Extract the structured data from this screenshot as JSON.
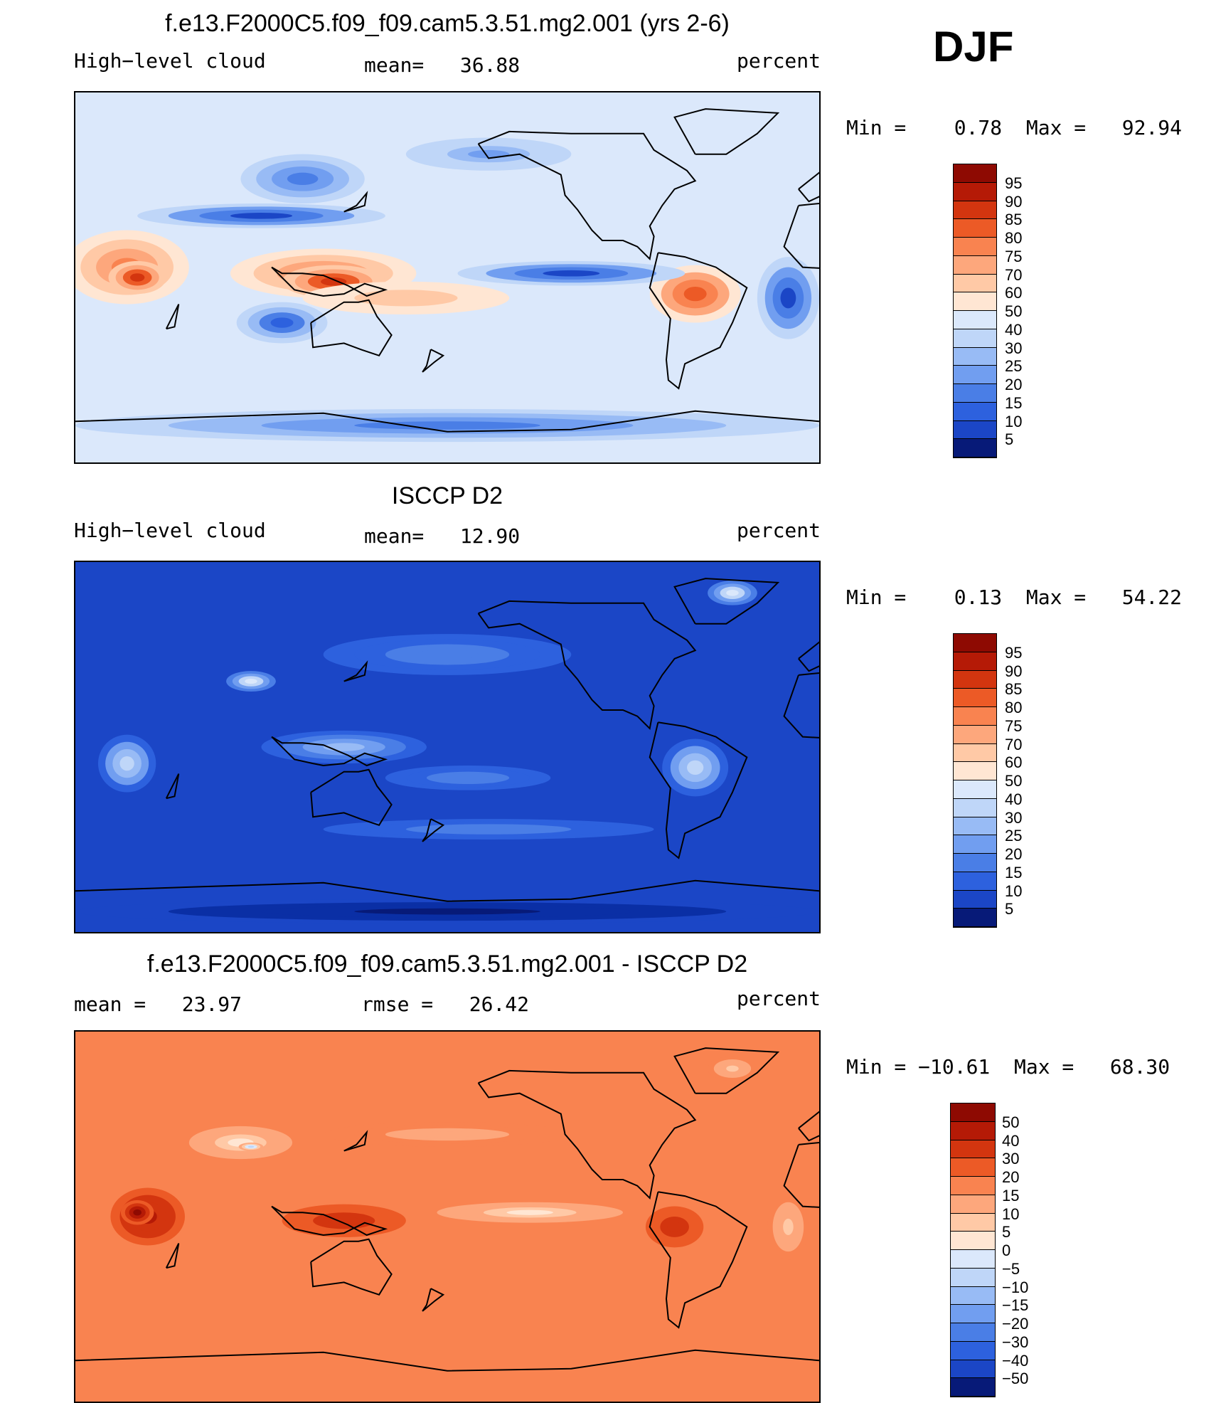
{
  "season": "DJF",
  "colors": {
    "ramp": [
      "#071a78",
      "#0a2fa5",
      "#1b46c6",
      "#2d61de",
      "#4a7ee6",
      "#719ef0",
      "#98bbf5",
      "#bfd6f8",
      "#dbe8fb",
      "#ffe6d3",
      "#ffc9a6",
      "#fda77c",
      "#f98350",
      "#ec5a26",
      "#d3350f",
      "#b51a06",
      "#8e0a02"
    ],
    "coastline": "#000000"
  },
  "panels": [
    {
      "title": "f.e13.F2000C5.f09_f09.cam5.3.51.mg2.001 (yrs 2-6)",
      "left_label": "High−level cloud",
      "center_label": "mean=   36.88",
      "right_label": "percent",
      "minmax": "Min =    0.78  Max =   92.94",
      "colorbar_labels": [
        "95",
        "90",
        "85",
        "80",
        "75",
        "70",
        "60",
        "50",
        "40",
        "30",
        "25",
        "20",
        "15",
        "10",
        "5"
      ],
      "field": {
        "type": "contour",
        "background_level": 8,
        "blobs": [
          {
            "lon": 25,
            "lat": 5,
            "rx": 30,
            "ry": 18,
            "level": 12
          },
          {
            "lon": 30,
            "lat": 0,
            "rx": 14,
            "ry": 8,
            "level": 14
          },
          {
            "lon": 120,
            "lat": 2,
            "rx": 45,
            "ry": 12,
            "level": 12
          },
          {
            "lon": 125,
            "lat": -2,
            "rx": 25,
            "ry": 8,
            "level": 14
          },
          {
            "lon": 160,
            "lat": -10,
            "rx": 50,
            "ry": 8,
            "level": 10
          },
          {
            "lon": 300,
            "lat": -8,
            "rx": 22,
            "ry": 14,
            "level": 13
          },
          {
            "lon": 110,
            "lat": 48,
            "rx": 30,
            "ry": 12,
            "level": 4
          },
          {
            "lon": 90,
            "lat": 30,
            "rx": 60,
            "ry": 6,
            "level": 2
          },
          {
            "lon": 240,
            "lat": 2,
            "rx": 55,
            "ry": 6,
            "level": 2
          },
          {
            "lon": 345,
            "lat": -10,
            "rx": 15,
            "ry": 20,
            "level": 2
          },
          {
            "lon": 100,
            "lat": -22,
            "rx": 22,
            "ry": 10,
            "level": 3
          },
          {
            "lon": 180,
            "lat": -72,
            "rx": 180,
            "ry": 8,
            "level": 4
          },
          {
            "lon": 200,
            "lat": 60,
            "rx": 40,
            "ry": 8,
            "level": 5
          }
        ]
      }
    },
    {
      "title": "ISCCP D2",
      "left_label": "High−level cloud",
      "center_label": "mean=   12.90",
      "right_label": "percent",
      "minmax": "Min =    0.13  Max =   54.22",
      "colorbar_labels": [
        "95",
        "90",
        "85",
        "80",
        "75",
        "70",
        "60",
        "50",
        "40",
        "30",
        "25",
        "20",
        "15",
        "10",
        "5"
      ],
      "field": {
        "type": "contour",
        "background_level": 2,
        "blobs": [
          {
            "lon": 25,
            "lat": -8,
            "rx": 14,
            "ry": 14,
            "level": 7
          },
          {
            "lon": 300,
            "lat": -10,
            "rx": 16,
            "ry": 14,
            "level": 7
          },
          {
            "lon": 130,
            "lat": 0,
            "rx": 40,
            "ry": 8,
            "level": 6
          },
          {
            "lon": 85,
            "lat": 32,
            "rx": 12,
            "ry": 5,
            "level": 8
          },
          {
            "lon": 318,
            "lat": 75,
            "rx": 12,
            "ry": 6,
            "level": 8
          },
          {
            "lon": 190,
            "lat": -15,
            "rx": 40,
            "ry": 6,
            "level": 4
          },
          {
            "lon": 180,
            "lat": 45,
            "rx": 60,
            "ry": 10,
            "level": 4
          },
          {
            "lon": 200,
            "lat": -40,
            "rx": 80,
            "ry": 5,
            "level": 4
          },
          {
            "lon": 180,
            "lat": -80,
            "rx": 180,
            "ry": 6,
            "level": 0
          }
        ]
      }
    },
    {
      "title": "f.e13.F2000C5.f09_f09.cam5.3.51.mg2.001 - ISCCP D2",
      "left_label": "mean =   23.97",
      "center_label": "rmse =   26.42",
      "right_label": "percent",
      "minmax": "Min = −10.61  Max =   68.30",
      "colorbar_labels": [
        "50",
        "40",
        "30",
        "20",
        "15",
        "10",
        "5",
        "0",
        "−5",
        "−10",
        "−15",
        "−20",
        "−30",
        "−40",
        "−50"
      ],
      "field": {
        "type": "contour",
        "background_level": 12,
        "blobs": [
          {
            "lon": 35,
            "lat": 0,
            "rx": 18,
            "ry": 14,
            "level": 15
          },
          {
            "lon": 30,
            "lat": 2,
            "rx": 8,
            "ry": 6,
            "level": 16
          },
          {
            "lon": 130,
            "lat": -2,
            "rx": 30,
            "ry": 8,
            "level": 14
          },
          {
            "lon": 290,
            "lat": -5,
            "rx": 14,
            "ry": 10,
            "level": 14
          },
          {
            "lon": 80,
            "lat": 36,
            "rx": 25,
            "ry": 8,
            "level": 9
          },
          {
            "lon": 85,
            "lat": 34,
            "rx": 6,
            "ry": 2,
            "level": 7
          },
          {
            "lon": 220,
            "lat": 2,
            "rx": 45,
            "ry": 5,
            "level": 9
          },
          {
            "lon": 318,
            "lat": 72,
            "rx": 12,
            "ry": 6,
            "level": 10
          },
          {
            "lon": 345,
            "lat": -5,
            "rx": 10,
            "ry": 16,
            "level": 10
          },
          {
            "lon": 180,
            "lat": 40,
            "rx": 60,
            "ry": 6,
            "level": 11
          }
        ]
      }
    }
  ]
}
